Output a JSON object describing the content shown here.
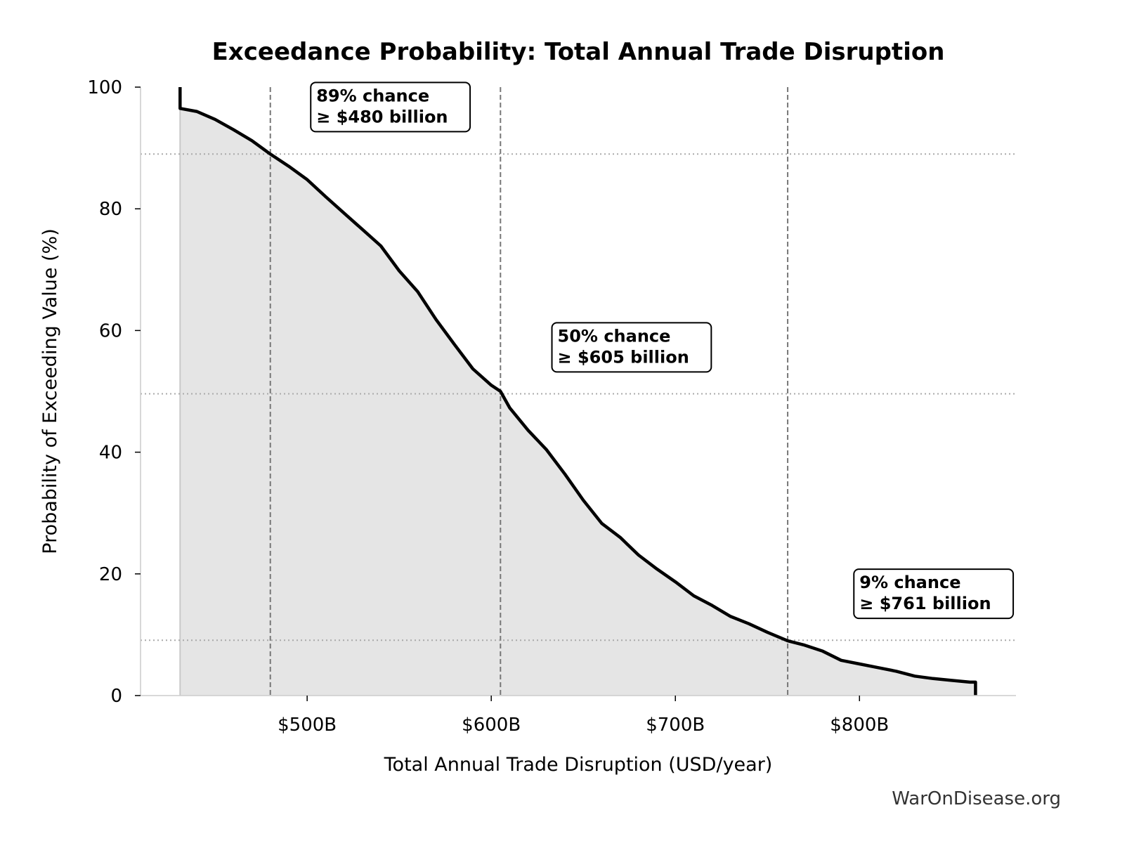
{
  "chart_data": {
    "type": "area",
    "title": "Exceedance Probability: Total Annual Trade Disruption",
    "xlabel": "Total Annual Trade Disruption (USD/year)",
    "ylabel": "Probability of Exceeding Value (%)",
    "xlim": [
      409.5,
      885
    ],
    "ylim": [
      0,
      100
    ],
    "x_ticks": [
      500,
      600,
      700,
      800
    ],
    "x_tick_labels": [
      "$500B",
      "$600B",
      "$700B",
      "$800B"
    ],
    "y_ticks": [
      0,
      20,
      40,
      60,
      80,
      100
    ],
    "y_tick_labels": [
      "0",
      "20",
      "40",
      "60",
      "80",
      "100"
    ],
    "grid": false,
    "series": [
      {
        "x": [
          431,
          431,
          440,
          450,
          460,
          470,
          480,
          490,
          500,
          510,
          520,
          530,
          540,
          550,
          560,
          570,
          580,
          590,
          600,
          605,
          610,
          620,
          630,
          640,
          650,
          660,
          670,
          680,
          690,
          700,
          710,
          720,
          730,
          740,
          750,
          761,
          770,
          780,
          790,
          800,
          810,
          820,
          830,
          840,
          850,
          860,
          863,
          863
        ],
        "y": [
          100,
          96.5,
          96,
          94.7,
          93,
          91.2,
          89,
          87,
          84.8,
          82,
          79.3,
          76.6,
          73.9,
          69.8,
          66.4,
          61.8,
          57.7,
          53.7,
          51,
          50,
          47.3,
          43.6,
          40.4,
          36.4,
          32.1,
          28.3,
          26,
          23.1,
          20.8,
          18.7,
          16.4,
          14.8,
          13,
          11.8,
          10.4,
          9,
          8.3,
          7.3,
          5.8,
          5.2,
          4.6,
          4,
          3.2,
          2.8,
          2.5,
          2.2,
          2.2,
          0
        ]
      }
    ],
    "colors": {
      "line": "#000000",
      "fill": "#e5e5e5",
      "ref_line": "#777777",
      "ref_hline": "#aaaaaa"
    },
    "reference_lines": [
      {
        "x": 480,
        "y": 89,
        "label_line1": "89% chance",
        "label_line2": "≥ $480 billion",
        "label_x": 505,
        "label_y": 98
      },
      {
        "x": 605,
        "y": 49.6,
        "label_line1": "50% chance",
        "label_line2": "≥ $605 billion",
        "label_x": 636,
        "label_y": 58.5
      },
      {
        "x": 761,
        "y": 9.1,
        "label_line1": "9% chance",
        "label_line2": "≥ $761 billion",
        "label_x": 800,
        "label_y": 18
      }
    ]
  },
  "watermark": "WarOnDisease.org"
}
